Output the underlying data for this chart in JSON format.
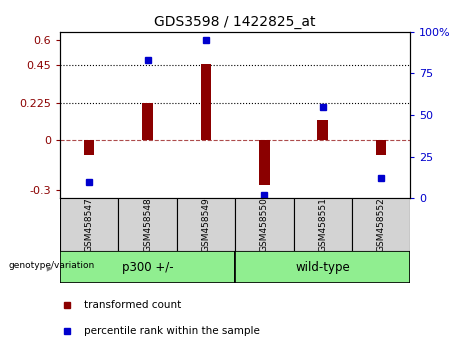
{
  "title": "GDS3598 / 1422825_at",
  "samples": [
    "GSM458547",
    "GSM458548",
    "GSM458549",
    "GSM458550",
    "GSM458551",
    "GSM458552"
  ],
  "bar_values": [
    -0.09,
    0.225,
    0.455,
    -0.27,
    0.12,
    -0.09
  ],
  "dot_values": [
    10,
    83,
    95,
    2,
    55,
    12
  ],
  "groups": [
    {
      "label": "p300 +/-",
      "indices": [
        0,
        1,
        2
      ],
      "color": "#90EE90"
    },
    {
      "label": "wild-type",
      "indices": [
        3,
        4,
        5
      ],
      "color": "#90EE90"
    }
  ],
  "bar_color": "#8B0000",
  "dot_color": "#0000CD",
  "ylim_left": [
    -0.35,
    0.65
  ],
  "ylim_right": [
    0,
    100
  ],
  "yticks_left": [
    -0.3,
    0,
    0.225,
    0.45,
    0.6
  ],
  "yticks_right": [
    0,
    25,
    50,
    75,
    100
  ],
  "hlines": [
    0.45,
    0.225
  ],
  "hline_zero": 0,
  "bg_color": "#FFFFFF",
  "label_color_left": "#8B0000",
  "label_color_right": "#0000CD",
  "genotype_label": "genotype/variation",
  "legend_items": [
    {
      "label": "transformed count",
      "color": "#8B0000"
    },
    {
      "label": "percentile rank within the sample",
      "color": "#0000CD"
    }
  ],
  "sample_box_color": "#D3D3D3",
  "bar_width": 0.18
}
